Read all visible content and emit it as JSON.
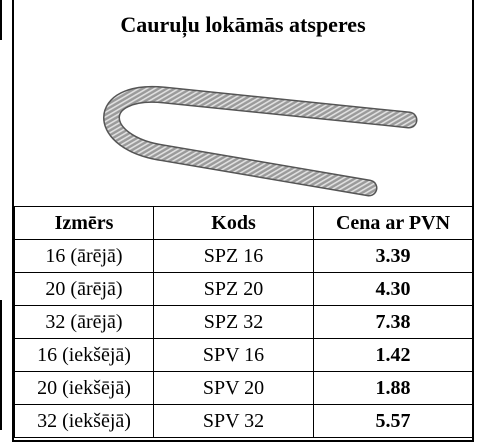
{
  "header": {
    "title": "Cauruļu lokāmās atsperes"
  },
  "table": {
    "columns": [
      "Izmērs",
      "Kods",
      "Cena ar PVN"
    ],
    "rows": [
      [
        "16 (ārējā)",
        "SPZ 16",
        "3.39"
      ],
      [
        "20 (ārējā)",
        "SPZ 20",
        "4.30"
      ],
      [
        "32 (ārējā)",
        "SPZ 32",
        "7.38"
      ],
      [
        "16 (iekšējā)",
        "SPV 16",
        "1.42"
      ],
      [
        "20 (iekšējā)",
        "SPV 20",
        "1.88"
      ],
      [
        "32 (iekšējā)",
        "SPV 32",
        "5.57"
      ]
    ]
  }
}
